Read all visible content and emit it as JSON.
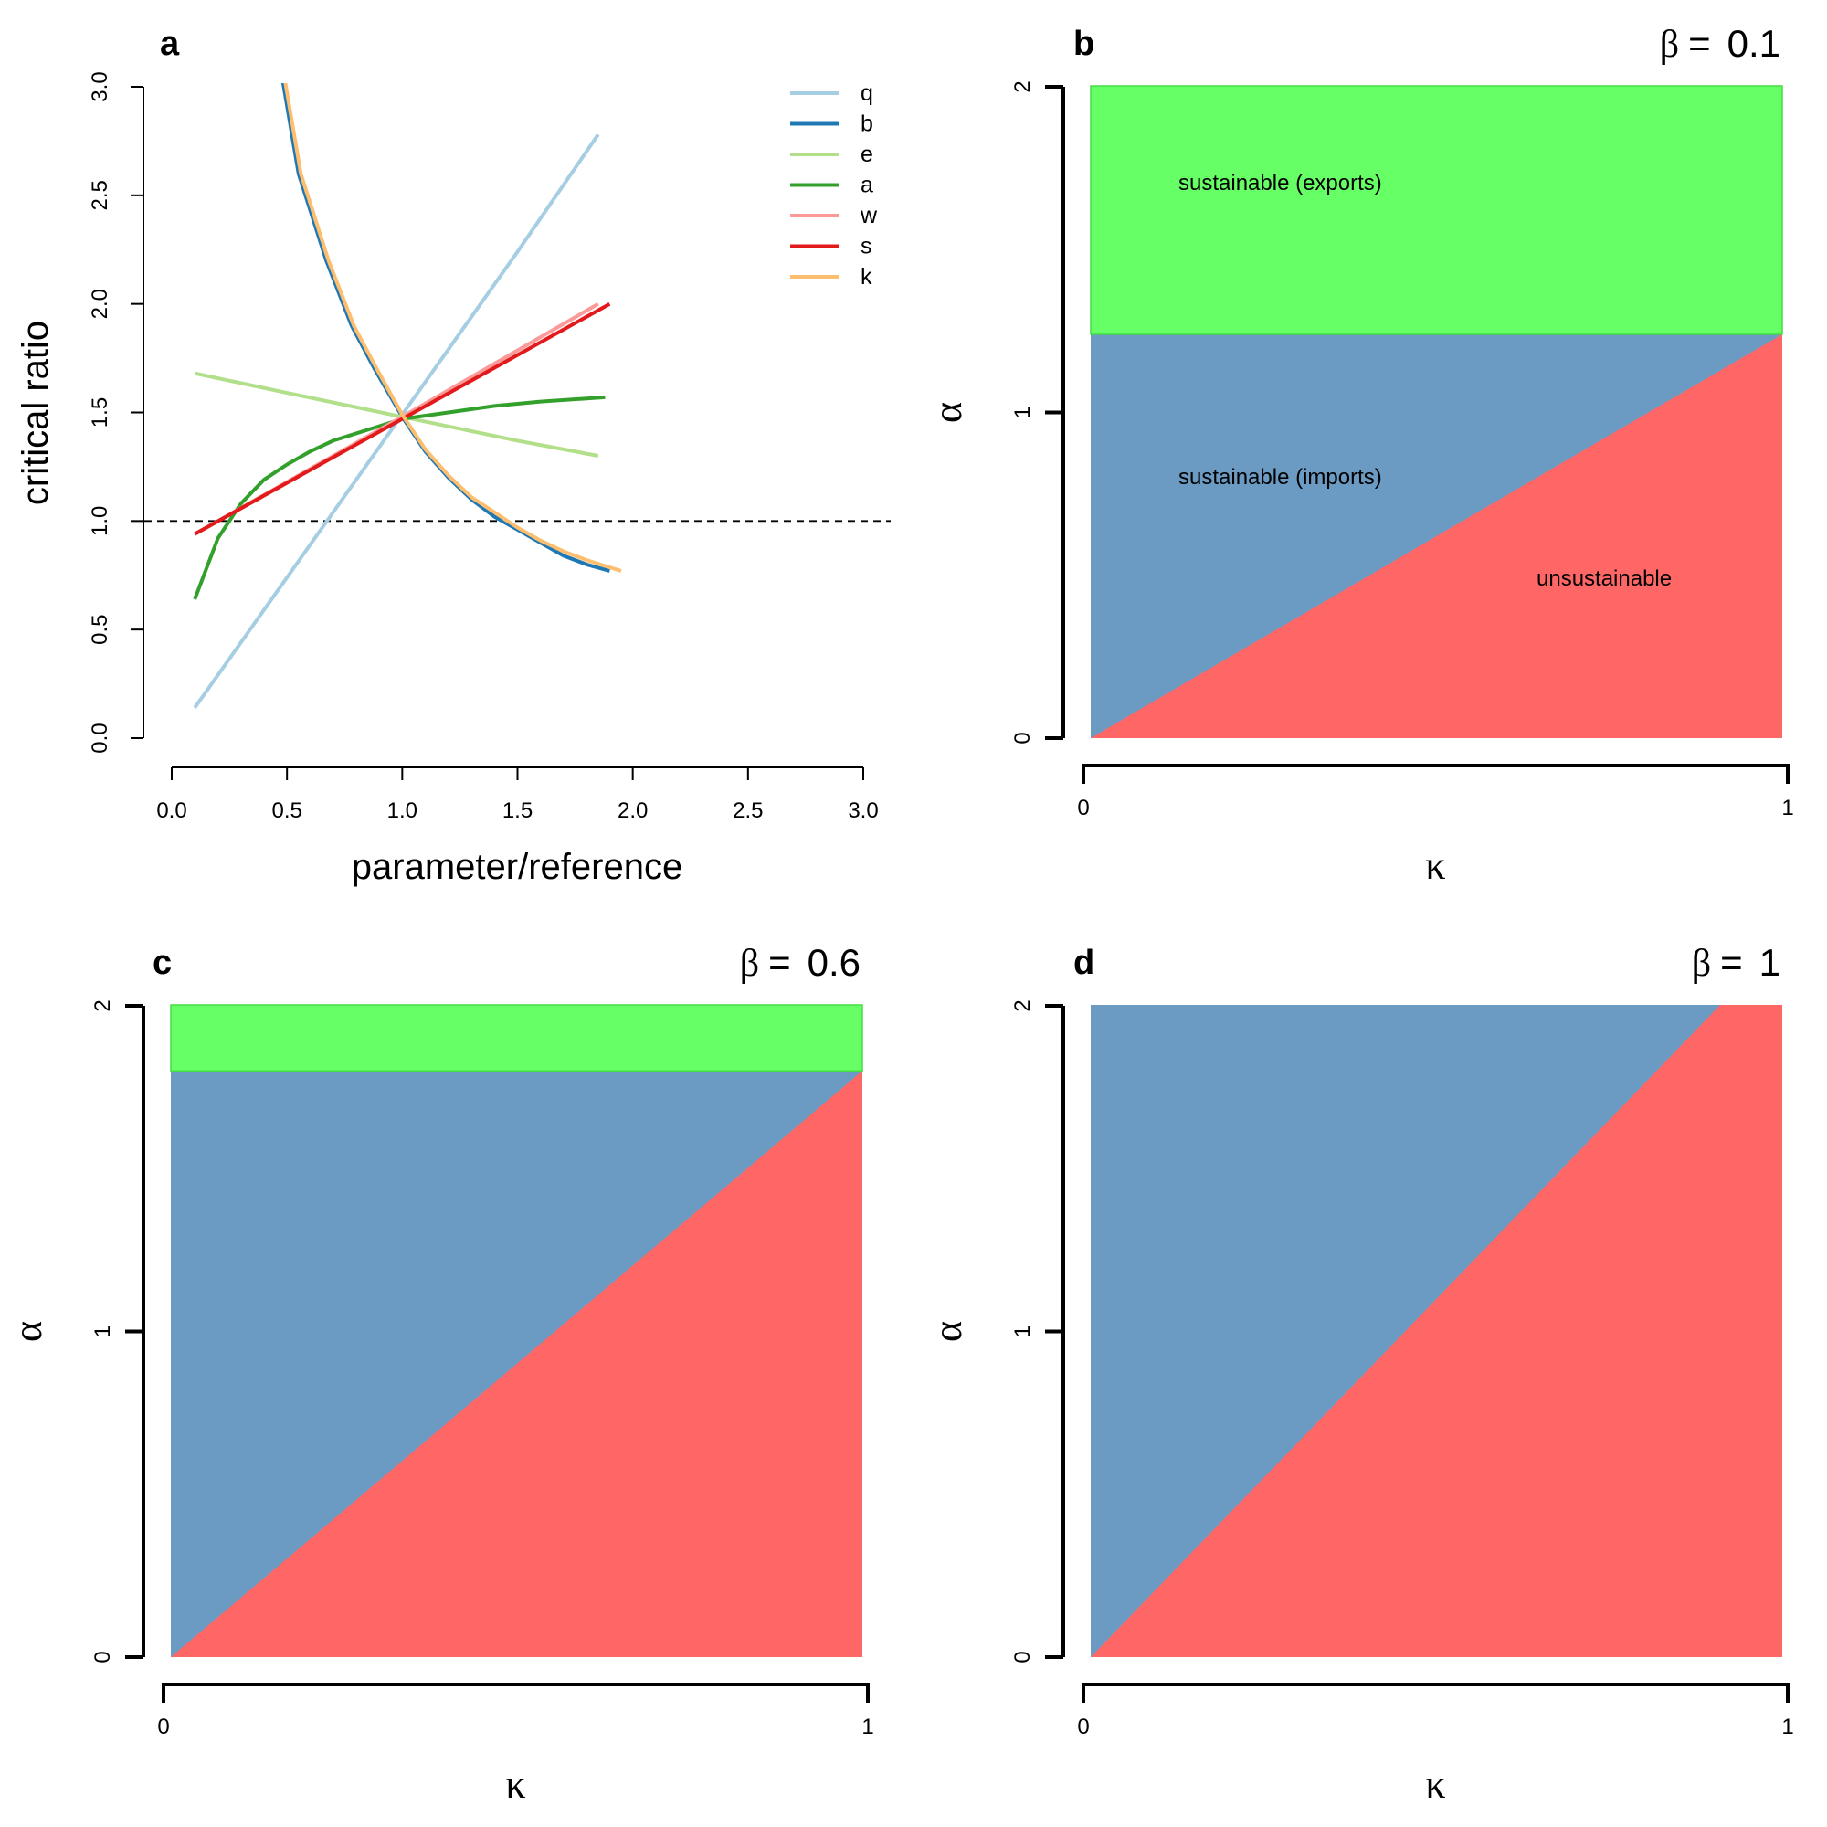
{
  "chart_data": [
    {
      "panel": "a",
      "type": "line",
      "xlabel": "parameter/reference",
      "ylabel": "critical ratio",
      "xlim": [
        0,
        3
      ],
      "ylim": [
        0,
        3
      ],
      "x_ticks": [
        "0.0",
        "0.5",
        "1.0",
        "1.5",
        "2.0",
        "2.5",
        "3.0"
      ],
      "y_ticks": [
        "0.0",
        "0.5",
        "1.0",
        "1.5",
        "2.0",
        "2.5",
        "3.0"
      ],
      "reference_line": {
        "y": 1.0,
        "style": "dashed"
      },
      "legend_position": "top-right",
      "series": [
        {
          "name": "q",
          "color": "#a6cee3",
          "points": [
            [
              0.1,
              0.14
            ],
            [
              0.5,
              0.74
            ],
            [
              1.0,
              1.49
            ],
            [
              1.5,
              2.24
            ],
            [
              1.85,
              2.78
            ]
          ]
        },
        {
          "name": "b",
          "color": "#1f78b4",
          "points": [
            [
              0.47,
              3.1
            ],
            [
              0.55,
              2.6
            ],
            [
              0.67,
              2.2
            ],
            [
              0.78,
              1.9
            ],
            [
              0.88,
              1.7
            ],
            [
              1.0,
              1.48
            ],
            [
              1.1,
              1.32
            ],
            [
              1.2,
              1.2
            ],
            [
              1.3,
              1.1
            ],
            [
              1.4,
              1.02
            ],
            [
              1.5,
              0.96
            ],
            [
              1.6,
              0.9
            ],
            [
              1.7,
              0.84
            ],
            [
              1.8,
              0.8
            ],
            [
              1.9,
              0.77
            ]
          ]
        },
        {
          "name": "e",
          "color": "#b2df8a",
          "points": [
            [
              0.1,
              1.68
            ],
            [
              0.5,
              1.59
            ],
            [
              1.0,
              1.48
            ],
            [
              1.5,
              1.37
            ],
            [
              1.85,
              1.3
            ]
          ]
        },
        {
          "name": "a",
          "color": "#33a02c",
          "points": [
            [
              0.1,
              0.64
            ],
            [
              0.2,
              0.92
            ],
            [
              0.3,
              1.08
            ],
            [
              0.4,
              1.19
            ],
            [
              0.5,
              1.26
            ],
            [
              0.6,
              1.32
            ],
            [
              0.7,
              1.37
            ],
            [
              0.85,
              1.42
            ],
            [
              1.0,
              1.47
            ],
            [
              1.2,
              1.5
            ],
            [
              1.4,
              1.53
            ],
            [
              1.6,
              1.55
            ],
            [
              1.88,
              1.57
            ]
          ]
        },
        {
          "name": "w",
          "color": "#fb9a99",
          "points": [
            [
              0.1,
              0.94
            ],
            [
              1.0,
              1.48
            ],
            [
              1.85,
              2.0
            ]
          ]
        },
        {
          "name": "s",
          "color": "#e31a1c",
          "points": [
            [
              0.1,
              0.94
            ],
            [
              1.0,
              1.47
            ],
            [
              1.9,
              2.0
            ]
          ]
        },
        {
          "name": "k",
          "color": "#fdbf6f",
          "points": [
            [
              0.48,
              3.1
            ],
            [
              0.56,
              2.6
            ],
            [
              0.68,
              2.2
            ],
            [
              0.79,
              1.9
            ],
            [
              0.89,
              1.7
            ],
            [
              1.0,
              1.49
            ],
            [
              1.1,
              1.33
            ],
            [
              1.2,
              1.21
            ],
            [
              1.3,
              1.11
            ],
            [
              1.4,
              1.04
            ],
            [
              1.5,
              0.97
            ],
            [
              1.6,
              0.91
            ],
            [
              1.7,
              0.86
            ],
            [
              1.8,
              0.82
            ],
            [
              1.95,
              0.77
            ]
          ]
        }
      ]
    },
    {
      "panel": "b",
      "type": "area",
      "beta_symbol": "β",
      "beta_value": "0.1",
      "eq_sign": "=",
      "xlabel": "κ",
      "ylabel": "α",
      "xlim": [
        0,
        1
      ],
      "ylim": [
        0,
        2
      ],
      "x_ticks": [
        "0",
        "1"
      ],
      "y_ticks": [
        "0",
        "1",
        "2"
      ],
      "boundary_diagonal_end_y": 1.24,
      "boundary_export_y": 1.24,
      "region_labels": [
        "sustainable (exports)",
        "sustainable (imports)",
        "unsustainable"
      ]
    },
    {
      "panel": "c",
      "type": "area",
      "beta_symbol": "β",
      "beta_value": "0.6",
      "eq_sign": "=",
      "xlabel": "κ",
      "ylabel": "α",
      "xlim": [
        0,
        1
      ],
      "ylim": [
        0,
        2
      ],
      "x_ticks": [
        "0",
        "1"
      ],
      "y_ticks": [
        "0",
        "1",
        "2"
      ],
      "boundary_diagonal_end_y": 1.8,
      "boundary_export_y": 1.8
    },
    {
      "panel": "d",
      "type": "area",
      "beta_symbol": "β",
      "beta_value": "1",
      "eq_sign": "=",
      "xlabel": "κ",
      "ylabel": "α",
      "xlim": [
        0,
        1
      ],
      "ylim": [
        0,
        2
      ],
      "x_ticks": [
        "0",
        "1"
      ],
      "y_ticks": [
        "0",
        "1",
        "2"
      ],
      "boundary_diagonal_end_y": 2.2,
      "boundary_export_y": null
    }
  ],
  "colors": {
    "exports_region": "#66ff66",
    "imports_region": "#6b9bc3",
    "unsustainable_region": "#ff6666",
    "axis": "#000000",
    "reference_line": "#000000"
  }
}
